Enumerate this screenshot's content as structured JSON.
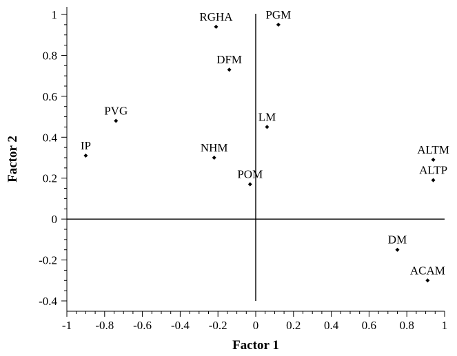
{
  "chart_data": {
    "type": "scatter",
    "xlabel": "Factor 1",
    "ylabel": "Factor 2",
    "xlim": [
      -1,
      1
    ],
    "ylim": [
      -0.43,
      1.03
    ],
    "x_ticks": [
      -1,
      -0.8,
      -0.6,
      -0.4,
      -0.2,
      0,
      0.2,
      0.4,
      0.6,
      0.8,
      1
    ],
    "x_tick_labels": [
      "-1",
      "-0.8",
      "-0.6",
      "-0.4",
      "-0.2",
      "0",
      "0.2",
      "0.4",
      "0.6",
      "0.8",
      "1"
    ],
    "y_ticks": [
      -0.4,
      -0.2,
      0,
      0.2,
      0.4,
      0.6,
      0.8,
      1
    ],
    "y_tick_labels": [
      "-0.4",
      "-0.2",
      "0",
      "0.2",
      "0.4",
      "0.6",
      "0.8",
      "1"
    ],
    "grid": false,
    "reference_lines": {
      "x": 0,
      "y": 0
    },
    "points": [
      {
        "label": "RGHA",
        "x": -0.21,
        "y": 0.94
      },
      {
        "label": "PGM",
        "x": 0.12,
        "y": 0.95
      },
      {
        "label": "DFM",
        "x": -0.14,
        "y": 0.73
      },
      {
        "label": "PVG",
        "x": -0.74,
        "y": 0.48
      },
      {
        "label": "LM",
        "x": 0.06,
        "y": 0.45
      },
      {
        "label": "IP",
        "x": -0.9,
        "y": 0.31
      },
      {
        "label": "NHM",
        "x": -0.22,
        "y": 0.3
      },
      {
        "label": "ALTM",
        "x": 0.94,
        "y": 0.29
      },
      {
        "label": "ALTP",
        "x": 0.94,
        "y": 0.19
      },
      {
        "label": "POM",
        "x": -0.03,
        "y": 0.17
      },
      {
        "label": "DM",
        "x": 0.75,
        "y": -0.15
      },
      {
        "label": "ACAM",
        "x": 0.91,
        "y": -0.3
      }
    ]
  }
}
